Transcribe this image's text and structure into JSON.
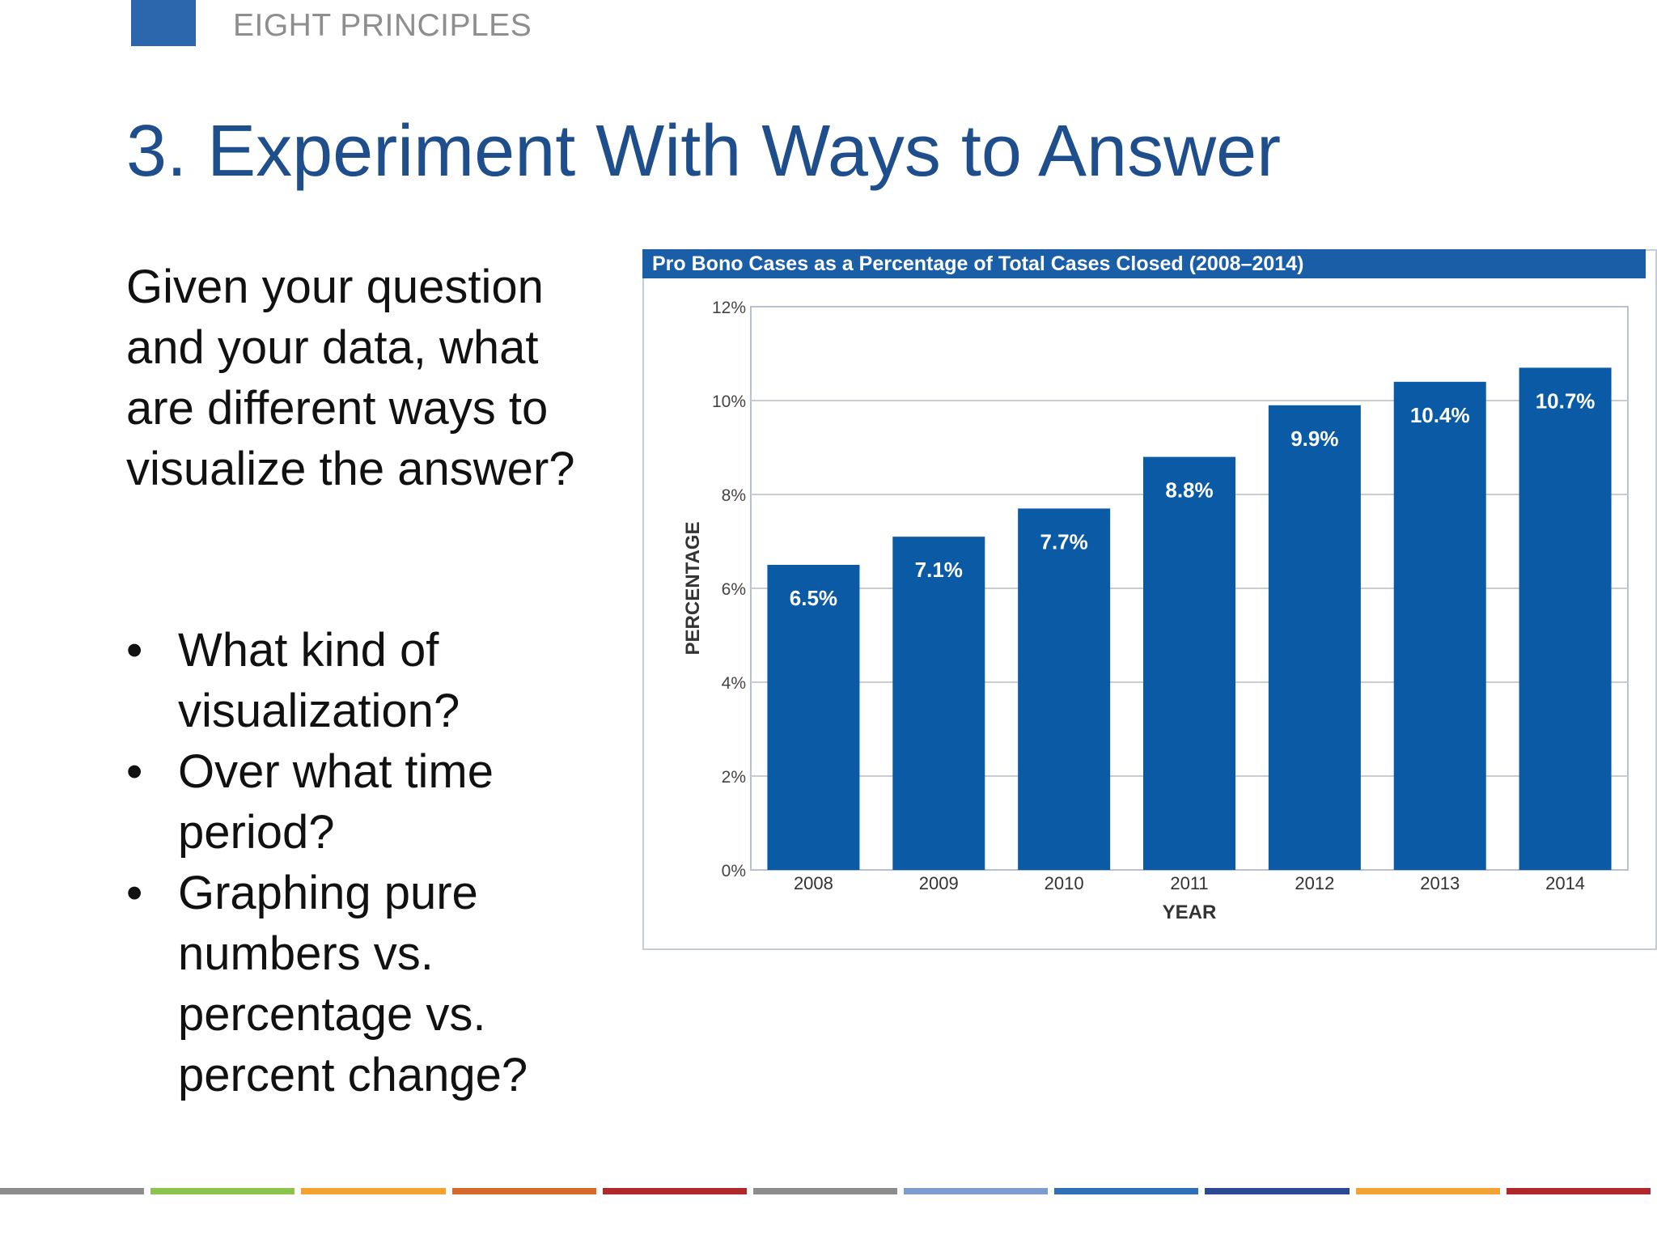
{
  "header": {
    "section_label": "EIGHT PRINCIPLES",
    "title": "3. Experiment With Ways to Answer"
  },
  "body": {
    "intro": "Given your question and your data, what are different ways to visualize the answer?",
    "bullets": [
      "What kind of visualization?",
      "Over what time period?",
      "Graphing pure numbers vs. percentage vs. percent change?"
    ],
    "bullet_symbol": "•"
  },
  "chart_data": {
    "type": "bar",
    "title": "Pro Bono Cases as a Percentage of Total Cases Closed (2008–2014)",
    "xlabel": "YEAR",
    "ylabel": "PERCENTAGE",
    "categories": [
      "2008",
      "2009",
      "2010",
      "2011",
      "2012",
      "2013",
      "2014"
    ],
    "values": [
      6.5,
      7.1,
      7.7,
      8.8,
      9.9,
      10.4,
      10.7
    ],
    "data_labels": [
      "6.5%",
      "7.1%",
      "7.7%",
      "8.8%",
      "9.9%",
      "10.4%",
      "10.7%"
    ],
    "ylim": [
      0,
      12
    ],
    "yticks": [
      0,
      2,
      4,
      6,
      8,
      10,
      12
    ],
    "ytick_labels": [
      "0%",
      "2%",
      "4%",
      "6%",
      "8%",
      "10%",
      "12%"
    ],
    "grid": true,
    "legend": "none",
    "bar_color": "#0b5aa5",
    "header_color": "#1b5ea8"
  },
  "footer": {
    "strip_colors": [
      "#8d8d8d",
      "#8cc24e",
      "#f1a230",
      "#d8692c",
      "#b0282c",
      "#8d8d8d",
      "#7f9ccf",
      "#2e6fb5",
      "#2c4a94",
      "#f1a230",
      "#b0282c"
    ]
  }
}
